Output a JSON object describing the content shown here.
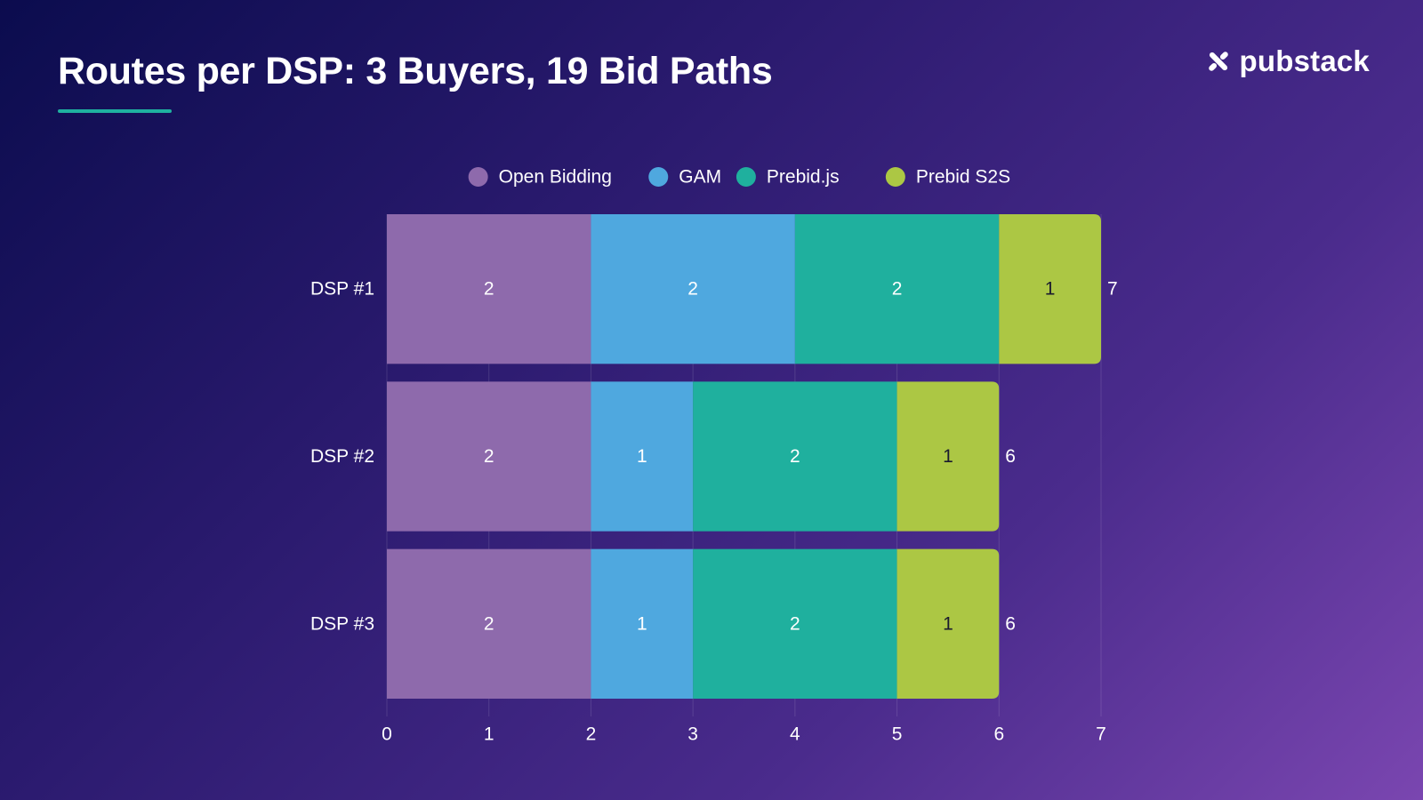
{
  "header": {
    "title": "Routes per DSP: 3 Buyers, 19 Bid Paths",
    "brand": "pubstack"
  },
  "colors": {
    "open_bidding": "#8e6aac",
    "gam": "#4fa8df",
    "prebid_js": "#1fb09e",
    "prebid_s2s": "#acc744",
    "accent": "#1fb1a0"
  },
  "chart_data": {
    "type": "bar",
    "orientation": "horizontal",
    "stacked": true,
    "title": "Routes per DSP: 3 Buyers, 19 Bid Paths",
    "categories": [
      "DSP #1",
      "DSP #2",
      "DSP #3"
    ],
    "series": [
      {
        "name": "Open Bidding",
        "values": [
          2,
          2,
          2
        ],
        "color": "#8e6aac"
      },
      {
        "name": "GAM",
        "values": [
          2,
          1,
          1
        ],
        "color": "#4fa8df"
      },
      {
        "name": "Prebid.js",
        "values": [
          2,
          2,
          2
        ],
        "color": "#1fb09e"
      },
      {
        "name": "Prebid S2S",
        "values": [
          1,
          1,
          1
        ],
        "color": "#acc744"
      }
    ],
    "totals": [
      7,
      6,
      6
    ],
    "xlim": [
      0,
      7
    ],
    "xticks": [
      0,
      1,
      2,
      3,
      4,
      5,
      6,
      7
    ],
    "xlabel": "",
    "ylabel": "",
    "legend_position": "top-center",
    "grid": true
  }
}
